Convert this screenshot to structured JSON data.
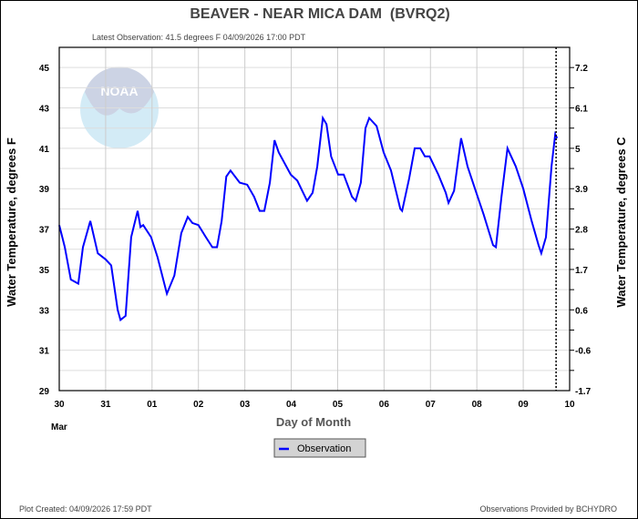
{
  "chart_data": {
    "type": "line",
    "title": "BEAVER - NEAR MICA DAM  (BVRQ2)",
    "subtitle": "Latest Observation: 41.5 degrees F 04/09/2026 17:00 PDT",
    "xlabel": "Day of Month",
    "x_month_label": "Mar",
    "ylabel": "Water Temperature, degrees F",
    "ylabel_right": "Water Temperature, degrees C",
    "xlim": [
      0,
      11
    ],
    "ylim": [
      29,
      46
    ],
    "x_ticks": [
      "30",
      "31",
      "01",
      "02",
      "03",
      "04",
      "05",
      "06",
      "07",
      "08",
      "09",
      "10"
    ],
    "y_ticks": [
      29,
      31,
      33,
      35,
      37,
      39,
      41,
      43,
      45
    ],
    "y_ticks_right": [
      "-1.7",
      "-0.6",
      "0.6",
      "1.7",
      "2.8",
      "3.9",
      "5",
      "6.1",
      "7.2"
    ],
    "grid": true,
    "latest_observation_x": 10.708,
    "legend": {
      "position": "bottom-center",
      "entries": [
        "Observation"
      ]
    },
    "series": [
      {
        "name": "Observation",
        "color": "#0000ff",
        "x_units": "days since Mar 30 00:00",
        "points": [
          [
            0,
            37.2
          ],
          [
            0.12,
            36.1
          ],
          [
            0.25,
            34.5
          ],
          [
            0.41,
            34.3
          ],
          [
            0.51,
            36.1
          ],
          [
            0.67,
            37.4
          ],
          [
            0.83,
            35.8
          ],
          [
            1.0,
            35.5
          ],
          [
            1.12,
            35.2
          ],
          [
            1.26,
            33.0
          ],
          [
            1.32,
            32.5
          ],
          [
            1.43,
            32.7
          ],
          [
            1.55,
            36.6
          ],
          [
            1.69,
            37.9
          ],
          [
            1.75,
            37.1
          ],
          [
            1.81,
            37.2
          ],
          [
            1.98,
            36.6
          ],
          [
            2.12,
            35.6
          ],
          [
            2.32,
            33.8
          ],
          [
            2.48,
            34.7
          ],
          [
            2.63,
            36.8
          ],
          [
            2.77,
            37.6
          ],
          [
            2.87,
            37.3
          ],
          [
            3.0,
            37.2
          ],
          [
            3.16,
            36.6
          ],
          [
            3.3,
            36.1
          ],
          [
            3.4,
            36.1
          ],
          [
            3.5,
            37.4
          ],
          [
            3.6,
            39.6
          ],
          [
            3.69,
            39.9
          ],
          [
            3.89,
            39.3
          ],
          [
            4.05,
            39.2
          ],
          [
            4.2,
            38.6
          ],
          [
            4.32,
            37.9
          ],
          [
            4.42,
            37.9
          ],
          [
            4.54,
            39.3
          ],
          [
            4.64,
            41.4
          ],
          [
            4.73,
            40.8
          ],
          [
            4.99,
            39.7
          ],
          [
            5.13,
            39.4
          ],
          [
            5.34,
            38.4
          ],
          [
            5.46,
            38.8
          ],
          [
            5.56,
            40.1
          ],
          [
            5.68,
            42.5
          ],
          [
            5.76,
            42.2
          ],
          [
            5.86,
            40.6
          ],
          [
            6.01,
            39.7
          ],
          [
            6.13,
            39.7
          ],
          [
            6.31,
            38.6
          ],
          [
            6.39,
            38.4
          ],
          [
            6.5,
            39.3
          ],
          [
            6.6,
            42.0
          ],
          [
            6.68,
            42.5
          ],
          [
            6.84,
            42.1
          ],
          [
            6.99,
            40.8
          ],
          [
            7.15,
            39.9
          ],
          [
            7.35,
            38.0
          ],
          [
            7.39,
            37.9
          ],
          [
            7.54,
            39.5
          ],
          [
            7.66,
            41.0
          ],
          [
            7.78,
            41.0
          ],
          [
            7.88,
            40.6
          ],
          [
            7.98,
            40.6
          ],
          [
            8.17,
            39.7
          ],
          [
            8.33,
            38.8
          ],
          [
            8.39,
            38.3
          ],
          [
            8.51,
            38.9
          ],
          [
            8.66,
            41.5
          ],
          [
            8.8,
            40.1
          ],
          [
            8.96,
            39.0
          ],
          [
            9.15,
            37.7
          ],
          [
            9.35,
            36.2
          ],
          [
            9.41,
            36.1
          ],
          [
            9.53,
            38.6
          ],
          [
            9.66,
            41.0
          ],
          [
            9.84,
            40.1
          ],
          [
            10.0,
            39.0
          ],
          [
            10.18,
            37.4
          ],
          [
            10.33,
            36.2
          ],
          [
            10.39,
            35.8
          ],
          [
            10.49,
            36.6
          ],
          [
            10.61,
            40.1
          ],
          [
            10.69,
            41.7
          ],
          [
            10.73,
            41.5
          ]
        ]
      }
    ]
  },
  "footer": {
    "plot_created": "Plot Created: 04/09/2026 17:59 PDT",
    "provider": "Observations Provided by BCHYDRO"
  },
  "logo": {
    "text": "NOAA"
  }
}
